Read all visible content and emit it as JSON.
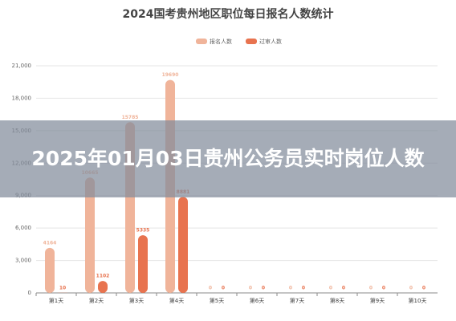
{
  "chart_data": {
    "type": "bar",
    "title": "2024国考贵州地区职位每日报名人数统计",
    "categories": [
      "第1天",
      "第2天",
      "第3天",
      "第4天",
      "第5天",
      "第6天",
      "第7天",
      "第8天",
      "第9天",
      "第10天"
    ],
    "series": [
      {
        "name": "报名人数",
        "color": "#f0b49a",
        "values": [
          4164,
          10665,
          15785,
          19690,
          0,
          0,
          0,
          0,
          0,
          0
        ]
      },
      {
        "name": "过审人数",
        "color": "#e8734f",
        "values": [
          10,
          1102,
          5335,
          8881,
          0,
          0,
          0,
          0,
          0,
          0
        ]
      }
    ],
    "ylim": [
      0,
      21000
    ],
    "yticks": [
      0,
      {
        "value": 3000,
        "label": "3,000"
      },
      {
        "value": 6000,
        "label": "6,000"
      },
      {
        "value": 9000,
        "label": "9,000"
      },
      {
        "value": 12000,
        "label": "12,000"
      },
      {
        "value": 15000,
        "label": "15,000"
      },
      {
        "value": 18000,
        "label": "18,000"
      },
      {
        "value": 21000,
        "label": "21,000"
      }
    ],
    "grid": true,
    "legend": "top"
  },
  "banner": {
    "text": "2025年01月03日贵州公务员实时岗位人数"
  }
}
